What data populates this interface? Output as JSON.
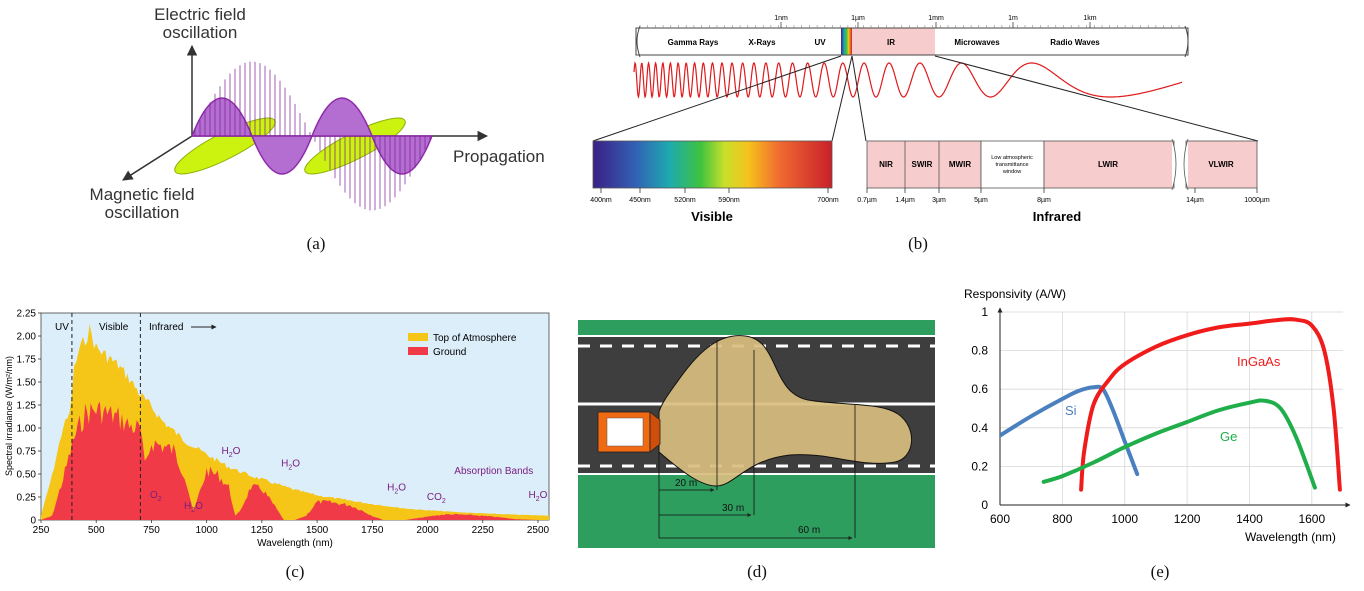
{
  "panel_a": {
    "caption": "(a)",
    "electric_label": [
      "Electric field",
      "oscillation"
    ],
    "magnetic_label": [
      "Magnetic field",
      "oscillation"
    ],
    "propagation_label": "Propagation",
    "electric_color": "#a23bbd",
    "magnetic_color": "#ccf20f"
  },
  "panel_b": {
    "caption": "(b)",
    "scale_marks": [
      "1nm",
      "1µm",
      "1mm",
      "1m",
      "1km"
    ],
    "bands": [
      "Gamma Rays",
      "X-Rays",
      "UV",
      "IR",
      "Microwaves",
      "Radio Waves"
    ],
    "visible_ticks": [
      "400nm",
      "450nm",
      "520nm",
      "590nm",
      "700nm"
    ],
    "visible_title": "Visible",
    "infrared_ticks": [
      "0.7µm",
      "1.4µm",
      "3µm",
      "5µm",
      "8µm",
      "14µm",
      "1000µm"
    ],
    "ir_bands": [
      "NIR",
      "SWIR",
      "MWIR",
      "LWIR",
      "VLWIR"
    ],
    "window_label": [
      "Low atmospheric",
      "transmittance",
      "window"
    ],
    "infrared_title": "Infrared",
    "ir_color": "#f7cccd",
    "wave_color": "#e0191b"
  },
  "panel_c": {
    "caption": "(c)",
    "chart_data": {
      "type": "area",
      "xlabel": "Wavelength (nm)",
      "ylabel": "Spectral irradiance (W/m²/nm)",
      "xlim": [
        250,
        2550
      ],
      "ylim": [
        0,
        2.25
      ],
      "xticks": [
        250,
        500,
        750,
        1000,
        1250,
        1500,
        1750,
        2000,
        2250,
        2500
      ],
      "yticks": [
        "0",
        "0.25",
        "0.50",
        "0.75",
        "1.00",
        "1.25",
        "1.50",
        "1.75",
        "2.00",
        "2.25"
      ],
      "legend_position": "top-right",
      "region_labels": [
        "UV",
        "Visible",
        "Infrared"
      ],
      "region_boundaries": [
        390,
        700
      ],
      "series": [
        {
          "name": "Top of Atmosphere",
          "color": "#f5c518",
          "x": [
            250,
            300,
            350,
            380,
            400,
            420,
            450,
            470,
            500,
            550,
            600,
            650,
            700,
            750,
            800,
            900,
            1000,
            1100,
            1200,
            1300,
            1400,
            1500,
            1600,
            1750,
            1900,
            2000,
            2200,
            2400,
            2550
          ],
          "y": [
            0.05,
            0.5,
            1.05,
            1.2,
            1.7,
            1.9,
            2.05,
            2.15,
            1.95,
            1.85,
            1.75,
            1.6,
            1.42,
            1.28,
            1.12,
            0.9,
            0.74,
            0.6,
            0.5,
            0.42,
            0.34,
            0.28,
            0.24,
            0.18,
            0.13,
            0.11,
            0.08,
            0.06,
            0.05
          ]
        },
        {
          "name": "Ground",
          "color": "#f03a47",
          "x": [
            250,
            300,
            350,
            400,
            450,
            500,
            550,
            600,
            650,
            700,
            720,
            750,
            800,
            850,
            900,
            940,
            1000,
            1050,
            1100,
            1130,
            1150,
            1200,
            1250,
            1300,
            1350,
            1400,
            1450,
            1500,
            1550,
            1600,
            1650,
            1700,
            1750,
            1800,
            1850,
            1900,
            1950,
            2000,
            2050,
            2100,
            2200,
            2300,
            2400,
            2500,
            2550
          ],
          "y": [
            0.0,
            0.05,
            0.5,
            1.0,
            1.3,
            1.35,
            1.3,
            1.25,
            1.15,
            1.1,
            0.65,
            0.95,
            0.9,
            0.85,
            0.55,
            0.1,
            0.6,
            0.55,
            0.4,
            0.05,
            0.1,
            0.4,
            0.38,
            0.2,
            0.0,
            0.0,
            0.05,
            0.22,
            0.22,
            0.2,
            0.18,
            0.12,
            0.05,
            0.0,
            0.0,
            0.0,
            0.02,
            0.04,
            0.06,
            0.07,
            0.06,
            0.04,
            0.01,
            0.0,
            0.0
          ]
        }
      ],
      "annotations": [
        {
          "label": "H2O",
          "x": 1110,
          "y": 0.72
        },
        {
          "label": "H2O",
          "x": 1380,
          "y": 0.58
        },
        {
          "label": "O2",
          "x": 770,
          "y": 0.24
        },
        {
          "label": "H2O",
          "x": 940,
          "y": 0.12
        },
        {
          "label": "H2O",
          "x": 1860,
          "y": 0.32
        },
        {
          "label": "CO2",
          "x": 2040,
          "y": 0.22
        },
        {
          "label": "H2O",
          "x": 2500,
          "y": 0.24
        },
        {
          "label": "Absorption Bands",
          "x": 2300,
          "y": 0.5
        }
      ]
    },
    "background_color": "#dceefa"
  },
  "panel_d": {
    "caption": "(d)",
    "distances": [
      "20 m",
      "30 m",
      "60 m"
    ],
    "grass_color": "#2e9e5f",
    "road_color": "#3e3e3e",
    "beam_color": "#d8bd7e",
    "car_color": "#f06a12"
  },
  "panel_e": {
    "caption": "(e)",
    "chart_data": {
      "type": "line",
      "title": "",
      "xlabel": "Wavelength (nm)",
      "ylabel": "Responsivity (A/W)",
      "xlim": [
        600,
        1700
      ],
      "ylim": [
        0,
        1
      ],
      "xticks": [
        600,
        800,
        1000,
        1200,
        1400,
        1600
      ],
      "yticks": [
        "0",
        "0.2",
        "0.4",
        "0.6",
        "0.8",
        "1"
      ],
      "grid": true,
      "series": [
        {
          "name": "Si",
          "color": "#4a80c0",
          "x": [
            600,
            700,
            800,
            850,
            900,
            930,
            960,
            1000,
            1040
          ],
          "y": [
            0.36,
            0.46,
            0.55,
            0.59,
            0.61,
            0.6,
            0.5,
            0.33,
            0.16
          ]
        },
        {
          "name": "InGaAs",
          "color": "#f01b1b",
          "x": [
            860,
            870,
            900,
            950,
            1000,
            1100,
            1200,
            1300,
            1400,
            1500,
            1550,
            1600,
            1640,
            1670,
            1690
          ],
          "y": [
            0.08,
            0.28,
            0.52,
            0.65,
            0.73,
            0.82,
            0.88,
            0.92,
            0.94,
            0.96,
            0.96,
            0.93,
            0.8,
            0.5,
            0.08
          ]
        },
        {
          "name": "Ge",
          "color": "#1fae4a",
          "x": [
            740,
            800,
            900,
            1000,
            1100,
            1200,
            1300,
            1400,
            1450,
            1500,
            1550,
            1610
          ],
          "y": [
            0.12,
            0.15,
            0.22,
            0.3,
            0.37,
            0.43,
            0.49,
            0.53,
            0.54,
            0.5,
            0.35,
            0.09
          ]
        }
      ]
    }
  }
}
